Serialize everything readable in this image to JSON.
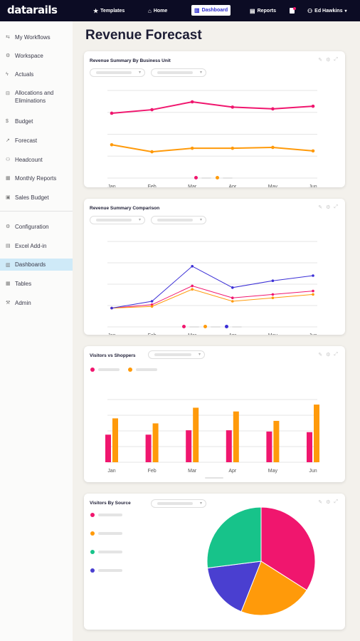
{
  "app": {
    "logo": "datarails"
  },
  "topnav": {
    "items": [
      {
        "label": "Templates",
        "icon": "star-icon"
      },
      {
        "label": "Home",
        "icon": "home-icon"
      },
      {
        "label": "Dashboard",
        "icon": "chart-icon"
      },
      {
        "label": "Reports",
        "icon": "report-icon"
      }
    ],
    "user": "Ed Hawkins"
  },
  "sidebar": {
    "items": [
      {
        "label": "My Workflows"
      },
      {
        "label": "Workspace"
      },
      {
        "label": "Actuals"
      },
      {
        "label": "Allocations and Eliminations"
      },
      {
        "label": "Budget"
      },
      {
        "label": "Forecast"
      },
      {
        "label": "Headcount"
      },
      {
        "label": "Monthly Reports"
      },
      {
        "label": "Sales Budget"
      },
      {
        "label": "Configuration"
      },
      {
        "label": "Excel Add-in"
      },
      {
        "label": "Dashboards",
        "active": true
      },
      {
        "label": "Tables"
      },
      {
        "label": "Admin"
      }
    ]
  },
  "page": {
    "title": "Revenue Forecast"
  },
  "colors": {
    "pink": "#f0166e",
    "orange": "#ff9a0a",
    "blue": "#3b2fd6",
    "green": "#17c38a",
    "indigo": "#4a3fd0"
  },
  "cards": [
    {
      "title": "Revenue Summary By Business Unit"
    },
    {
      "title": "Revenue Summary Comparison"
    },
    {
      "title": "Visitors vs Shoppers"
    },
    {
      "title": "Visitors By Source"
    }
  ],
  "chart_data": [
    {
      "type": "line",
      "title": "Revenue Summary By Business Unit",
      "categories": [
        "Jan",
        "Feb",
        "Mar",
        "Apr",
        "May",
        "Jun"
      ],
      "ylim": [
        0,
        100
      ],
      "grid": true,
      "series": [
        {
          "color": "#f0166e",
          "values": [
            74,
            78,
            87,
            81,
            79,
            82
          ]
        },
        {
          "color": "#ff9a0a",
          "values": [
            38,
            30,
            34,
            34,
            35,
            31
          ]
        }
      ]
    },
    {
      "type": "line",
      "title": "Revenue Summary Comparison",
      "categories": [
        "Jan",
        "Feb",
        "Mar",
        "Apr",
        "May",
        "Jun"
      ],
      "ylim": [
        0,
        100
      ],
      "grid": true,
      "series": [
        {
          "color": "#f0166e",
          "values": [
            22,
            26,
            48,
            34,
            38,
            42
          ]
        },
        {
          "color": "#ff9a0a",
          "values": [
            22,
            24,
            44,
            30,
            34,
            38
          ]
        },
        {
          "color": "#3b2fd6",
          "values": [
            22,
            30,
            71,
            46,
            54,
            60
          ]
        }
      ]
    },
    {
      "type": "bar",
      "title": "Visitors vs Shoppers",
      "categories": [
        "Jan",
        "Feb",
        "Mar",
        "Apr",
        "May",
        "Jun"
      ],
      "ylim": [
        0,
        100
      ],
      "grid": true,
      "series": [
        {
          "color": "#f0166e",
          "values": [
            44,
            44,
            51,
            51,
            49,
            48
          ]
        },
        {
          "color": "#ff9a0a",
          "values": [
            70,
            62,
            87,
            81,
            66,
            92
          ]
        }
      ]
    },
    {
      "type": "pie",
      "title": "Visitors By Source",
      "slices": [
        {
          "color": "#f0166e",
          "value": 34
        },
        {
          "color": "#ff9a0a",
          "value": 22
        },
        {
          "color": "#4a3fd0",
          "value": 17
        },
        {
          "color": "#17c38a",
          "value": 27
        }
      ]
    }
  ]
}
